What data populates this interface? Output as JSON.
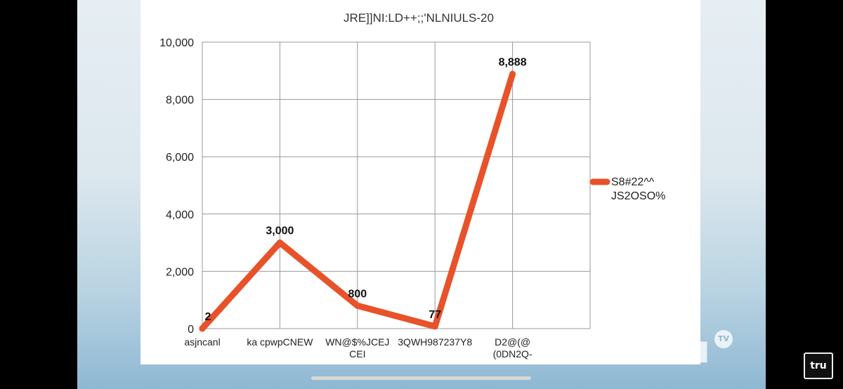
{
  "chart_data": {
    "type": "line",
    "title": "JRE]]NI:LD++;;'NLNIULS-20",
    "categories": [
      [
        "asjncanl"
      ],
      [
        "ka cpwpCNEW"
      ],
      [
        "WN@$%JCEJ",
        "CEI"
      ],
      [
        "3QWH987237Y8"
      ],
      [
        "D2@(@",
        "(0DN2Q-"
      ]
    ],
    "series": [
      {
        "name": [
          "S8#22^^",
          "JS2OSO%"
        ],
        "values": [
          2,
          3000,
          800,
          77,
          8888
        ],
        "labels": [
          "2",
          "3,000",
          "800",
          "77",
          "8,888"
        ],
        "color": "#e8522a"
      }
    ],
    "yticks": [
      "0",
      "2,000",
      "4,000",
      "6,000",
      "8,000",
      "10,000"
    ],
    "ylim": [
      0,
      10000
    ],
    "grid": true,
    "legend": "right"
  },
  "watermark": {
    "brand": "tru",
    "badge": "TV"
  },
  "corner_logo": "tru"
}
